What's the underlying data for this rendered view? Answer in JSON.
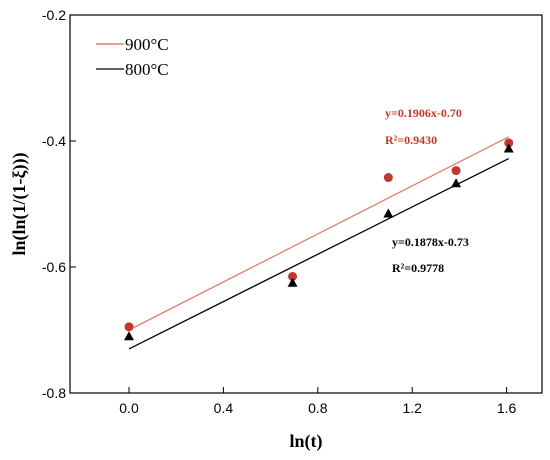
{
  "chart_data": {
    "type": "scatter",
    "title": "",
    "xlabel": "ln(t)",
    "ylabel": "ln(ln(1/(1-ξ)))",
    "xlim": [
      -0.25,
      1.75
    ],
    "ylim": [
      -0.8,
      -0.2
    ],
    "xticks": [
      0.0,
      0.4,
      0.8,
      1.2,
      1.6
    ],
    "xtick_labels": [
      "0.0",
      "0.4",
      "0.8",
      "1.2",
      "1.6"
    ],
    "yticks": [
      -0.8,
      -0.6,
      -0.4,
      -0.2
    ],
    "ytick_labels": [
      "-0.8",
      "-0.6",
      "-0.4",
      "-0.2"
    ],
    "grid": false,
    "legend_position": "top-left",
    "series": [
      {
        "name": "900°C",
        "color": "#c0392b",
        "line_color": "#e08070",
        "marker": "circle",
        "x": [
          0.0,
          0.693,
          1.099,
          1.386,
          1.609
        ],
        "y": [
          -0.695,
          -0.615,
          -0.458,
          -0.447,
          -0.403
        ],
        "fit": {
          "slope": 0.1906,
          "intercept": -0.7,
          "x_range": [
            0.0,
            1.609
          ]
        },
        "equation": "y=0.1906x-0.70",
        "r_squared": "R²=0.9430"
      },
      {
        "name": "800°C",
        "color": "#000000",
        "line_color": "#000000",
        "marker": "triangle",
        "x": [
          0.0,
          0.693,
          1.099,
          1.386,
          1.609
        ],
        "y": [
          -0.71,
          -0.625,
          -0.515,
          -0.467,
          -0.412
        ],
        "fit": {
          "slope": 0.1878,
          "intercept": -0.73,
          "x_range": [
            0.0,
            1.609
          ]
        },
        "equation": "y=0.1878x-0.73",
        "r_squared": "R²=0.9778"
      }
    ]
  }
}
